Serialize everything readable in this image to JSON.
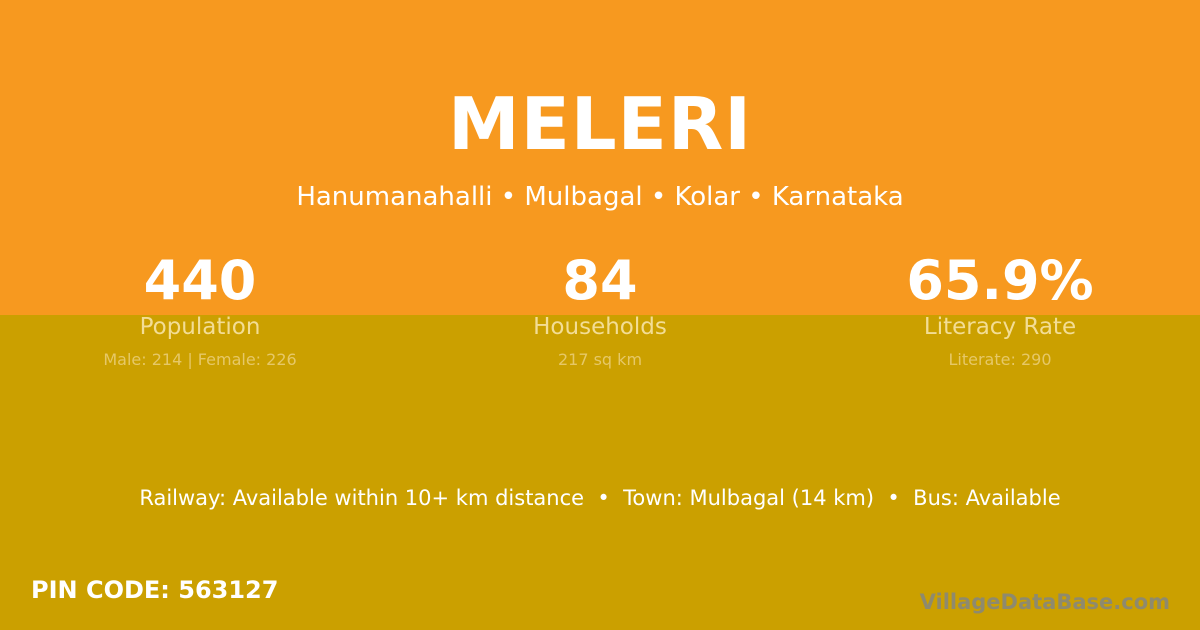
{
  "colors": {
    "top_band": "#F7991F",
    "bottom_band": "#CBA000"
  },
  "village": "MELERI",
  "location": "Hanumanahalli • Mulbagal • Kolar • Karnataka",
  "stats": [
    {
      "value": "440",
      "label": "Population",
      "sub": "Male: 214 | Female: 226"
    },
    {
      "value": "84",
      "label": "Households",
      "sub": "217 sq km"
    },
    {
      "value": "65.9%",
      "label": "Literacy Rate",
      "sub": "Literate: 290"
    }
  ],
  "transport": "Railway: Available within 10+ km distance  •  Town: Mulbagal (14 km)  •  Bus: Available",
  "pin": "PIN CODE: 563127",
  "watermark": "VillageDataBase.com"
}
